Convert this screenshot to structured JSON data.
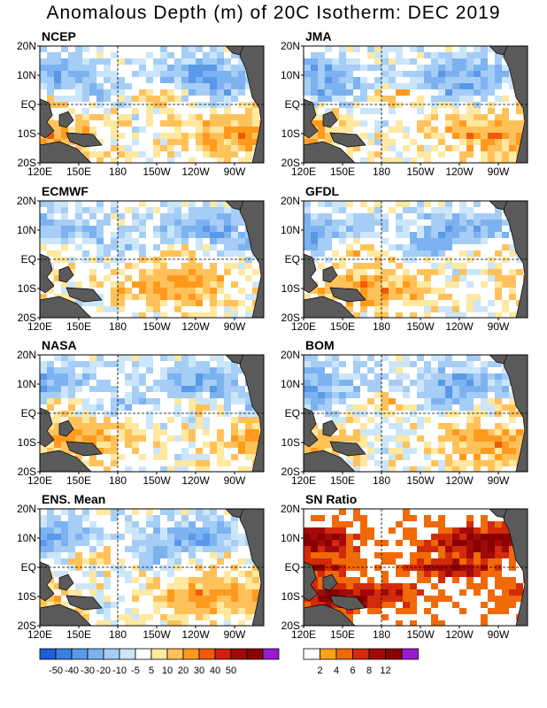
{
  "title": "Anomalous Depth (m) of 20C Isotherm: DEC 2019",
  "y_labels": [
    "20N",
    "10N",
    "EQ",
    "10S",
    "20S"
  ],
  "x_labels": [
    "120E",
    "150E",
    "180",
    "150W",
    "120W",
    "90W"
  ],
  "panels": [
    {
      "name": "NCEP",
      "type": "anomaly",
      "seed": 11
    },
    {
      "name": "JMA",
      "type": "anomaly",
      "seed": 23
    },
    {
      "name": "ECMWF",
      "type": "anomaly",
      "seed": 37
    },
    {
      "name": "GFDL",
      "type": "anomaly",
      "seed": 41
    },
    {
      "name": "NASA",
      "type": "anomaly",
      "seed": 53
    },
    {
      "name": "BOM",
      "type": "anomaly",
      "seed": 67
    },
    {
      "name": "ENS. Mean",
      "type": "anomaly",
      "seed": 79
    },
    {
      "name": "SN Ratio",
      "type": "snr",
      "seed": 97
    }
  ],
  "colorbar_anomaly": {
    "labels": [
      "-50",
      "-40",
      "-30",
      "-20",
      "-10",
      "-5",
      "5",
      "10",
      "20",
      "30",
      "40",
      "50"
    ],
    "colors": [
      "#1f5fd4",
      "#3a7fe0",
      "#5a98e8",
      "#7db2f0",
      "#a5cdf5",
      "#cbe6fa",
      "#ffffff",
      "#ffe8a0",
      "#ffc25a",
      "#ff9a1e",
      "#f05a0a",
      "#d01e0a",
      "#a00a0a",
      "#8a0000",
      "#9b1ad0"
    ]
  },
  "colorbar_snr": {
    "labels": [
      "2",
      "4",
      "6",
      "8",
      "12"
    ],
    "colors": [
      "#ffffff",
      "#ffa019",
      "#f06a0a",
      "#d22a0a",
      "#a00a0a",
      "#8a0000",
      "#9b1ad0"
    ]
  },
  "colors": {
    "land": "#5a5a5a"
  }
}
